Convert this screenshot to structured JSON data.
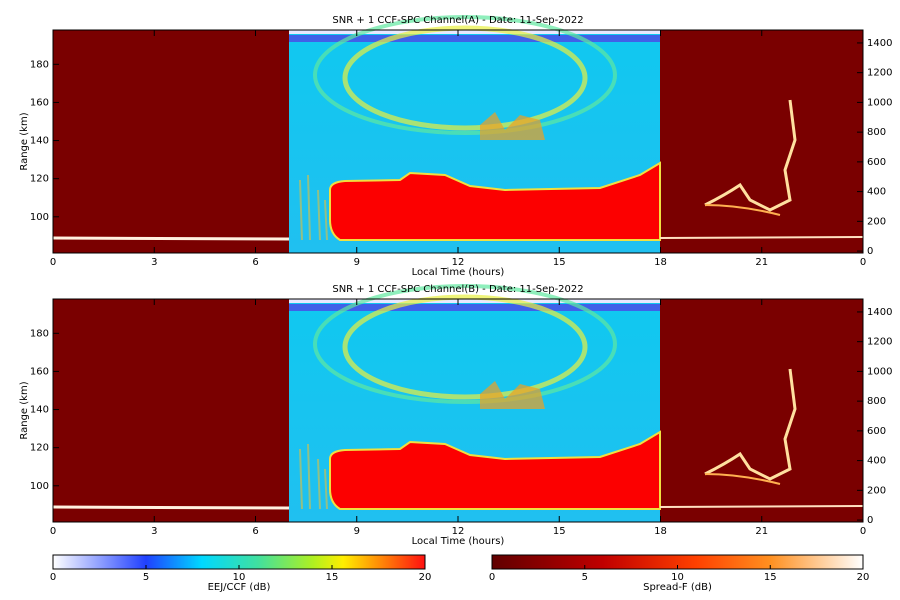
{
  "chart_data": [
    {
      "type": "heatmap",
      "title": "SNR + 1 CCF-SPC Channel(A) - Date: 11-Sep-2022",
      "xlabel": "Local Time (hours)",
      "ylabel": "Range (km)",
      "xlim": [
        0,
        24
      ],
      "xticks": [
        0,
        3,
        6,
        9,
        12,
        15,
        18,
        21,
        {
          "value": 24,
          "label": "0"
        }
      ],
      "ylim": [
        81,
        198
      ],
      "yticks": [
        100,
        120,
        140,
        160,
        180
      ],
      "y2lim": [
        -13,
        1487
      ],
      "y2ticks": [
        0,
        200,
        400,
        600,
        800,
        1000,
        1200,
        1400
      ]
    },
    {
      "type": "heatmap",
      "title": "SNR + 1 CCF-SPC Channel(B) - Date: 11-Sep-2022",
      "xlabel": "Local Time (hours)",
      "ylabel": "Range (km)",
      "xlim": [
        0,
        24
      ],
      "xticks": [
        0,
        3,
        6,
        9,
        12,
        15,
        18,
        21,
        {
          "value": 24,
          "label": "0"
        }
      ],
      "ylim": [
        81,
        198
      ],
      "yticks": [
        100,
        120,
        140,
        160,
        180
      ],
      "y2lim": [
        -13,
        1487
      ],
      "y2ticks": [
        0,
        200,
        400,
        600,
        800,
        1000,
        1200,
        1400
      ]
    }
  ],
  "colorbars": [
    {
      "label": "EEJ/CCF (dB)",
      "lim": [
        0,
        20
      ],
      "ticks": [
        0,
        5,
        10,
        15,
        20
      ]
    },
    {
      "label": "Spread-F (dB)",
      "lim": [
        0,
        20
      ],
      "ticks": [
        0,
        5,
        10,
        15,
        20
      ]
    }
  ]
}
